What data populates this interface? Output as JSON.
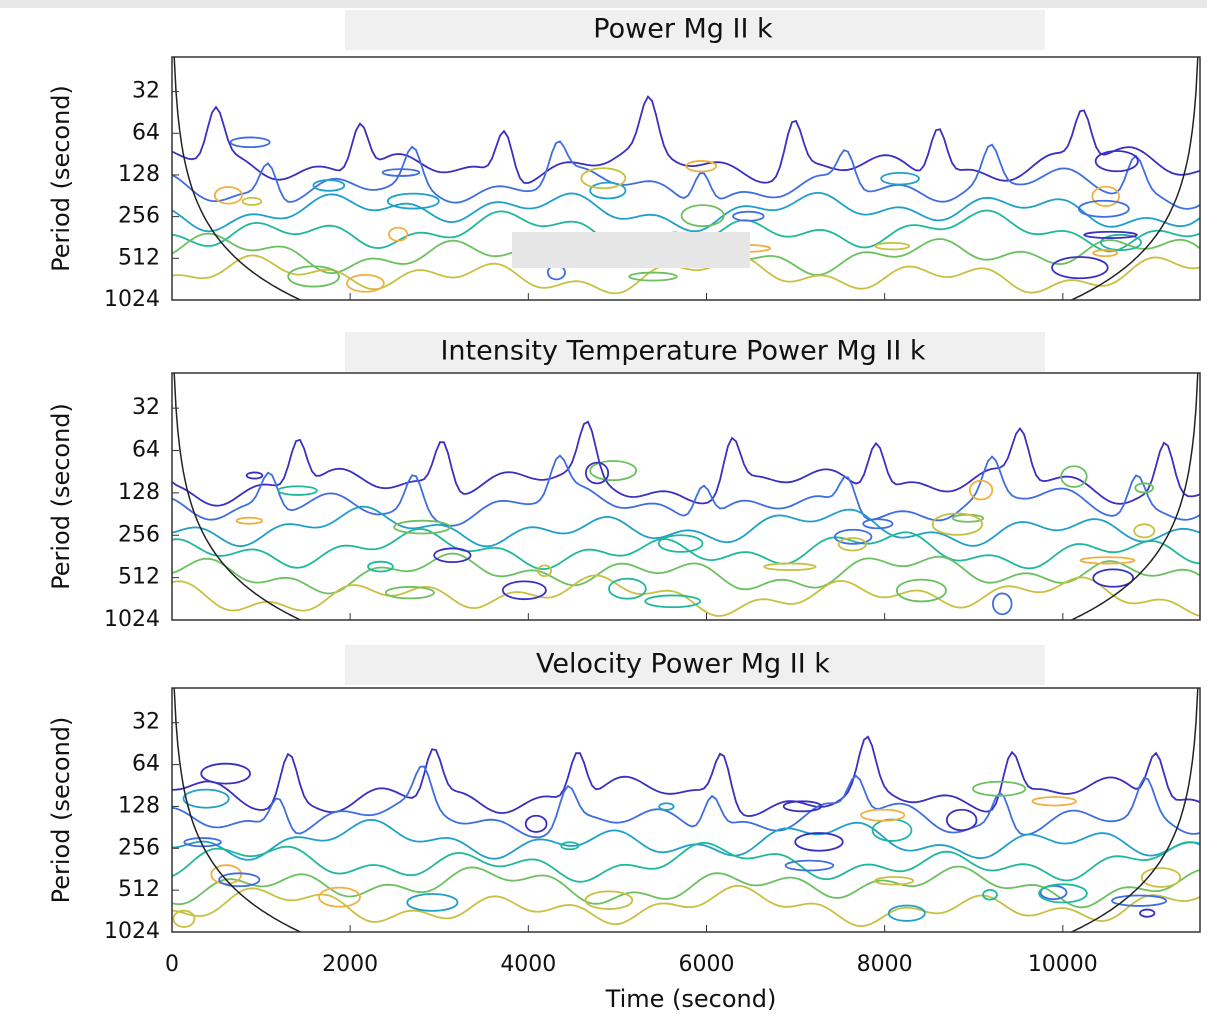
{
  "chart_data": [
    {
      "type": "contour",
      "title": "Power Mg II k",
      "ylabel": "Period (second)",
      "ylog": true,
      "ylim": [
        1024,
        18
      ],
      "yticks": [
        32,
        64,
        128,
        256,
        512,
        1024
      ],
      "xlim": [
        0,
        11540
      ],
      "xticks": [
        0,
        2000,
        4000,
        6000,
        8000,
        10000
      ],
      "contour_colors": [
        "#3a2fc0",
        "#3f6ee0",
        "#1fa0c8",
        "#20b89a",
        "#6cc060",
        "#c8c040",
        "#f0b040",
        "#111111"
      ]
    },
    {
      "type": "contour",
      "title": "Intensity Temperature Power Mg II k",
      "ylabel": "Period (second)",
      "ylog": true,
      "ylim": [
        1024,
        18
      ],
      "yticks": [
        32,
        64,
        128,
        256,
        512,
        1024
      ],
      "xlim": [
        0,
        11540
      ],
      "xticks": [
        0,
        2000,
        4000,
        6000,
        8000,
        10000
      ],
      "contour_colors": [
        "#3a2fc0",
        "#3f6ee0",
        "#1fa0c8",
        "#20b89a",
        "#6cc060",
        "#c8c040",
        "#f0b040",
        "#111111"
      ]
    },
    {
      "type": "contour",
      "title": "Velocity Power Mg II k",
      "ylabel": "Period (second)",
      "xlabel": "Time (second)",
      "ylog": true,
      "ylim": [
        1024,
        18
      ],
      "yticks": [
        32,
        64,
        128,
        256,
        512,
        1024
      ],
      "xlim": [
        0,
        11540
      ],
      "xticks": [
        0,
        2000,
        4000,
        6000,
        8000,
        10000
      ],
      "contour_colors": [
        "#3a2fc0",
        "#3f6ee0",
        "#1fa0c8",
        "#20b89a",
        "#6cc060",
        "#c8c040",
        "#f0b040",
        "#111111"
      ]
    }
  ]
}
